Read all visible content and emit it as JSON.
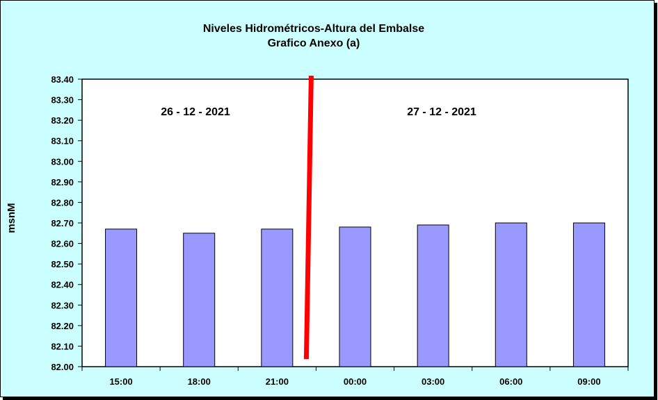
{
  "chart_data": {
    "type": "bar",
    "title": "Niveles Hidrométricos-Altura del Embalse",
    "subtitle": "Grafico Anexo (a)",
    "xlabel": "",
    "ylabel": "msnM",
    "categories": [
      "15:00",
      "18:00",
      "21:00",
      "00:00",
      "03:00",
      "06:00",
      "09:00"
    ],
    "values": [
      82.67,
      82.65,
      82.67,
      82.68,
      82.69,
      82.7,
      82.7
    ],
    "ylim": [
      82.0,
      83.4
    ],
    "yticks": [
      "82.00",
      "82.10",
      "82.20",
      "82.30",
      "82.40",
      "82.50",
      "82.60",
      "82.70",
      "82.80",
      "82.90",
      "83.00",
      "83.10",
      "83.20",
      "83.30",
      "83.40"
    ],
    "grid": false,
    "annotations": [
      "26 - 12 - 2021",
      "27 - 12 - 2021"
    ],
    "colors": {
      "background": "#ccffff",
      "plot_area": "#ffffff",
      "bar_fill": "#9999ff",
      "divider": "#ff0000"
    }
  }
}
